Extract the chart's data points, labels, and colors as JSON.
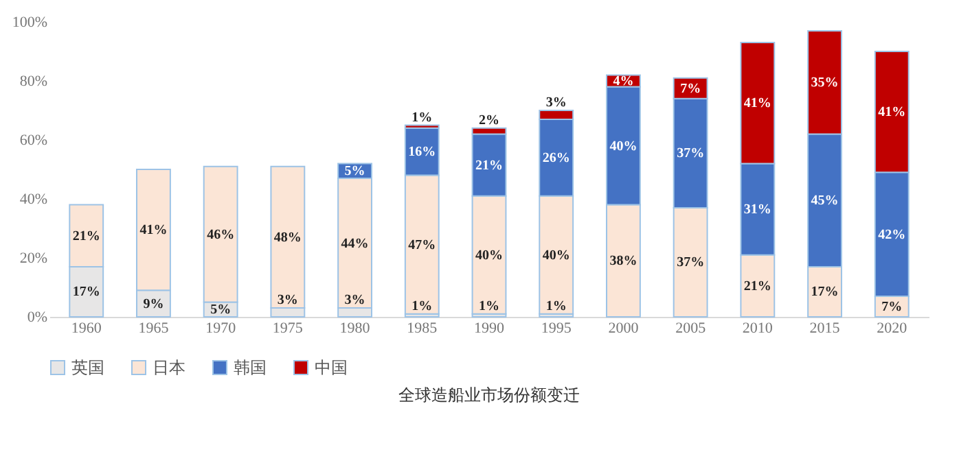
{
  "chart_data": {
    "type": "bar",
    "stacked": true,
    "categories": [
      "1960",
      "1965",
      "1970",
      "1975",
      "1980",
      "1985",
      "1990",
      "1995",
      "2000",
      "2005",
      "2010",
      "2015",
      "2020"
    ],
    "series": [
      {
        "name": "英国",
        "color": "#e7e6e6",
        "values": [
          17,
          9,
          5,
          3,
          3,
          1,
          1,
          1,
          null,
          null,
          null,
          null,
          null
        ],
        "value_labels": [
          "17%",
          "9%",
          "5%",
          "3%",
          "3%",
          "1%",
          "1%",
          "1%",
          null,
          null,
          null,
          null,
          null
        ]
      },
      {
        "name": "日本",
        "color": "#fbe5d6",
        "values": [
          21,
          41,
          46,
          48,
          44,
          47,
          40,
          40,
          38,
          37,
          21,
          17,
          7
        ],
        "value_labels": [
          "21%",
          "41%",
          "46%",
          "48%",
          "44%",
          "47%",
          "40%",
          "40%",
          "38%",
          "37%",
          "21%",
          "17%",
          "7%"
        ]
      },
      {
        "name": "韩国",
        "color": "#4472c4",
        "values": [
          null,
          null,
          null,
          null,
          5,
          16,
          21,
          26,
          40,
          37,
          31,
          45,
          42
        ],
        "value_labels": [
          null,
          null,
          null,
          null,
          "5%",
          "16%",
          "21%",
          "26%",
          "40%",
          "37%",
          "31%",
          "45%",
          "42%"
        ]
      },
      {
        "name": "中国",
        "color": "#c00000",
        "values": [
          null,
          null,
          null,
          null,
          null,
          1,
          2,
          3,
          4,
          7,
          41,
          35,
          41
        ],
        "value_labels": [
          null,
          null,
          null,
          null,
          null,
          "1%",
          "2%",
          "3%",
          "4%",
          "7%",
          "41%",
          "35%",
          "41%"
        ]
      }
    ],
    "ylim": [
      0,
      100
    ],
    "yticks": [
      {
        "value": 0,
        "label": "0%"
      },
      {
        "value": 20,
        "label": "20%"
      },
      {
        "value": 40,
        "label": "40%"
      },
      {
        "value": 60,
        "label": "60%"
      },
      {
        "value": 80,
        "label": "80%"
      },
      {
        "value": 100,
        "label": "100%"
      }
    ],
    "legend": "bottom",
    "grid": false,
    "annotations": [
      "全球造船业市场份额变迁"
    ]
  }
}
